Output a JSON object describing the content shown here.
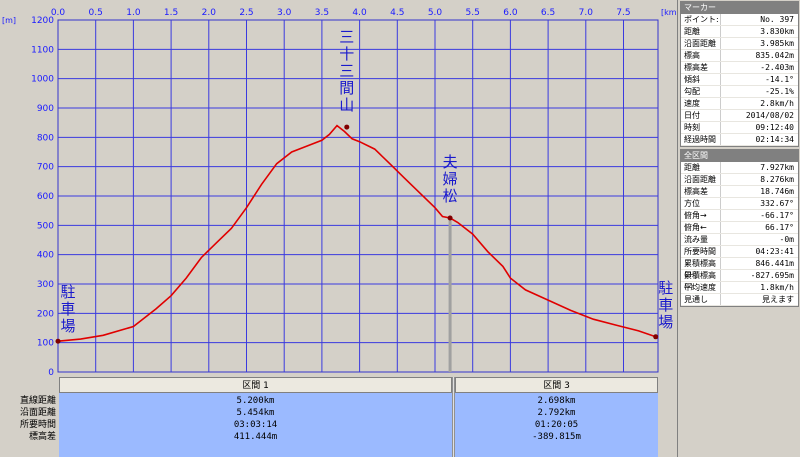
{
  "chart_data": {
    "type": "line",
    "xlabel_unit": "[km]",
    "ylabel_unit": "[m]",
    "xlim": [
      0,
      7.927
    ],
    "ylim": [
      0,
      1200
    ],
    "x_ticks": [
      "0.0",
      "0.5",
      "1.0",
      "1.5",
      "2.0",
      "2.5",
      "3.0",
      "3.5",
      "4.0",
      "4.5",
      "5.0",
      "5.5",
      "6.0",
      "6.5",
      "7.0",
      "7.5"
    ],
    "y_ticks": [
      "0",
      "100",
      "200",
      "300",
      "400",
      "500",
      "600",
      "700",
      "800",
      "900",
      "1000",
      "1100",
      "1200"
    ],
    "series": [
      {
        "x": [
          0.0,
          0.3,
          0.6,
          1.0,
          1.3,
          1.5,
          1.7,
          1.9,
          2.1,
          2.3,
          2.5,
          2.7,
          2.9,
          3.1,
          3.3,
          3.5,
          3.6,
          3.7,
          3.8,
          3.9,
          4.0,
          4.2,
          4.4,
          4.6,
          4.8,
          5.0,
          5.1,
          5.2,
          5.3,
          5.5,
          5.7,
          5.9,
          6.0,
          6.2,
          6.5,
          6.8,
          7.1,
          7.4,
          7.7,
          7.927
        ],
        "y": [
          105,
          112,
          125,
          155,
          215,
          260,
          320,
          390,
          440,
          490,
          560,
          640,
          710,
          750,
          770,
          790,
          810,
          840,
          820,
          795,
          785,
          760,
          710,
          660,
          610,
          560,
          530,
          525,
          510,
          470,
          410,
          360,
          320,
          280,
          245,
          210,
          180,
          160,
          140,
          120
        ]
      }
    ],
    "annotations": [
      {
        "label": "駐車場",
        "x": 0.0,
        "y": 105
      },
      {
        "label": "三十三間山",
        "x": 3.83,
        "y": 835
      },
      {
        "label": "夫婦松",
        "x": 5.2,
        "y": 525
      },
      {
        "label": "駐車場",
        "x": 7.927,
        "y": 120
      }
    ]
  },
  "segments": {
    "row_labels": [
      "直線距離",
      "沿面距離",
      "所要時間",
      "標高差"
    ],
    "cols": [
      {
        "header": "区間 1",
        "values": [
          "5.200km",
          "5.454km",
          "03:03:14",
          "411.444m"
        ]
      },
      {
        "header": "区間 3",
        "values": [
          "2.698km",
          "2.792km",
          "01:20:05",
          "-389.815m"
        ]
      }
    ]
  },
  "marker": {
    "title": "マーカー",
    "rows": [
      {
        "k": "ポイント:",
        "v": "No. 397"
      },
      {
        "k": "距離",
        "v": "3.830km"
      },
      {
        "k": "沿面距離",
        "v": "3.985km"
      },
      {
        "k": "標高",
        "v": "835.042m"
      },
      {
        "k": "標高差",
        "v": "-2.403m"
      },
      {
        "k": "傾斜",
        "v": "-14.1°"
      },
      {
        "k": "勾配",
        "v": "-25.1%"
      },
      {
        "k": "速度",
        "v": "2.8km/h"
      },
      {
        "k": "日付",
        "v": "2014/08/02"
      },
      {
        "k": "時刻",
        "v": "09:12:40"
      },
      {
        "k": "経過時間",
        "v": "02:14:34"
      }
    ]
  },
  "total": {
    "title": "全区間",
    "rows": [
      {
        "k": "距離",
        "v": "7.927km"
      },
      {
        "k": "沿面距離",
        "v": "8.276km"
      },
      {
        "k": "標高差",
        "v": "18.746m"
      },
      {
        "k": "方位",
        "v": "332.67°"
      },
      {
        "k": "俯角→",
        "v": "-66.17°"
      },
      {
        "k": "俯角←",
        "v": "66.17°"
      },
      {
        "k": "流み量",
        "v": "-0m"
      },
      {
        "k": "所要時間",
        "v": "04:23:41"
      },
      {
        "k": "累積標高(+)",
        "v": "846.441m"
      },
      {
        "k": "累積標高(-)",
        "v": "-827.695m"
      },
      {
        "k": "平均速度",
        "v": "1.8km/h"
      },
      {
        "k": "見通し",
        "v": "見えます"
      }
    ]
  }
}
